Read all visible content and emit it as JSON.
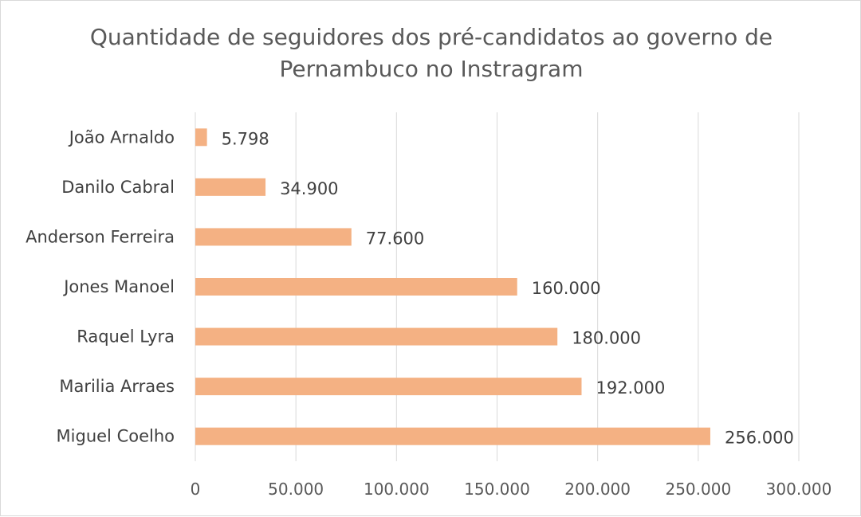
{
  "chart_data": {
    "type": "bar",
    "orientation": "horizontal",
    "title": "Quantidade de seguidores dos pré-candidatos ao governo de Pernambuco no Instragram",
    "title_lines": [
      "Quantidade de seguidores dos pré-candidatos ao governo de",
      "Pernambuco no Instragram"
    ],
    "categories": [
      "João Arnaldo",
      "Danilo Cabral",
      "Anderson Ferreira",
      "Jones Manoel",
      "Raquel Lyra",
      "Marilia Arraes",
      "Miguel Coelho"
    ],
    "values": [
      5798,
      34900,
      77600,
      160000,
      180000,
      192000,
      256000
    ],
    "data_labels": [
      "5.798",
      "34.900",
      "77.600",
      "160.000",
      "180.000",
      "192.000",
      "256.000"
    ],
    "xlim": [
      0,
      300000
    ],
    "x_ticks": [
      0,
      50000,
      100000,
      150000,
      200000,
      250000,
      300000
    ],
    "x_tick_labels": [
      "0",
      "50.000",
      "100.000",
      "150.000",
      "200.000",
      "250.000",
      "300.000"
    ],
    "grid": true,
    "bar_color": "#F4B183",
    "gridline_color": "#d9d9d9"
  }
}
